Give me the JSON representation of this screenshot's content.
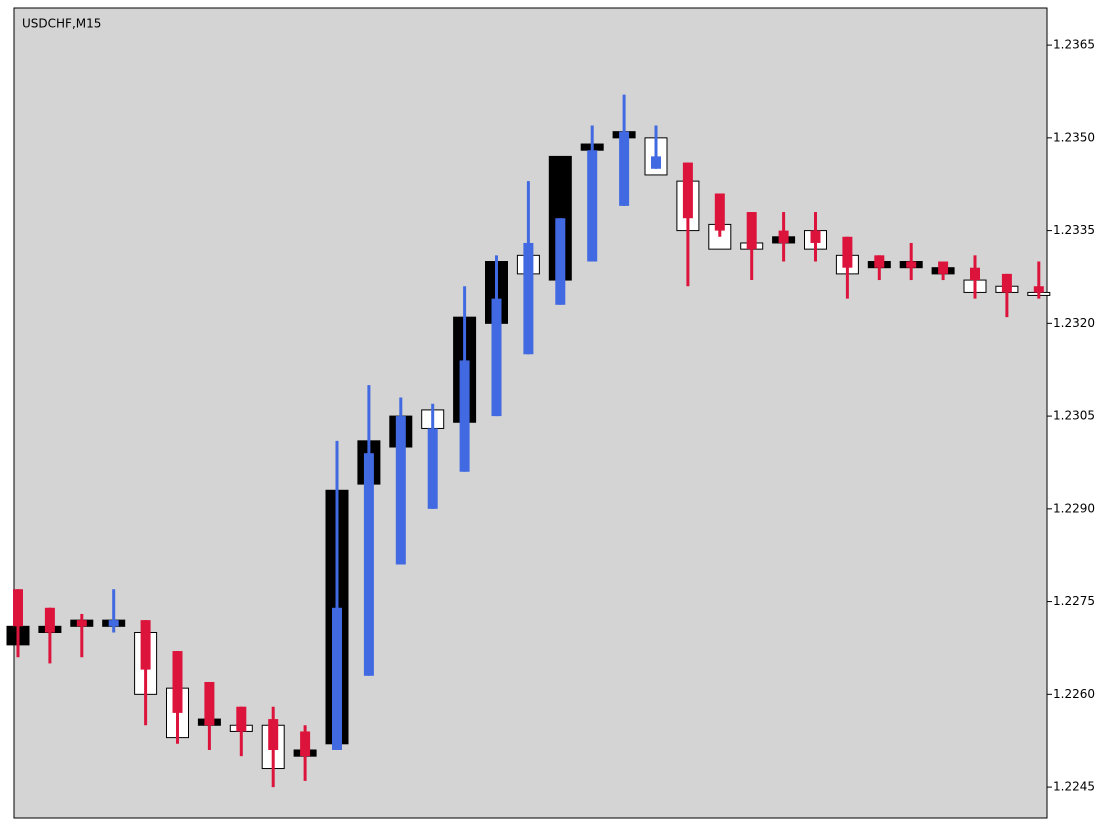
{
  "chart_data": {
    "type": "candlestick",
    "title": "USDCHF,M15",
    "ylim": [
      1.224,
      1.2371
    ],
    "yticks": [
      1.2365,
      {
        "value": 1.235,
        "label": "1.2350"
      },
      1.2335,
      {
        "value": 1.232,
        "label": "1.2320"
      },
      1.2305,
      {
        "value": 1.229,
        "label": "1.2290"
      },
      1.2275,
      {
        "value": 1.226,
        "label": "1.2260"
      },
      1.2245
    ],
    "series": [
      {
        "up_color": "#ffffff",
        "down_color": "#000000",
        "open": [
          1.2271,
          1.2271,
          1.2272,
          1.2272,
          1.226,
          1.2253,
          1.2256,
          1.2254,
          1.2248,
          1.2251,
          1.2293,
          1.2301,
          1.2305,
          1.2303,
          1.2321,
          1.233,
          1.2328,
          1.2347,
          1.2349,
          1.2351,
          1.2344,
          1.2335,
          1.2332,
          1.2332,
          1.2334,
          1.2332,
          1.2328,
          1.233,
          1.233,
          1.2329,
          1.2325,
          1.2325,
          1.2325
        ],
        "close": [
          1.2268,
          1.227,
          1.2271,
          1.2271,
          1.227,
          1.2261,
          1.2255,
          1.2255,
          1.2255,
          1.225,
          1.2252,
          1.2294,
          1.23,
          1.2306,
          1.2304,
          1.232,
          1.2331,
          1.2327,
          1.2348,
          1.235,
          1.235,
          1.2343,
          1.2336,
          1.2333,
          1.2333,
          1.2335,
          1.2331,
          1.2329,
          1.2329,
          1.2328,
          1.2327,
          1.2326,
          1.2325
        ]
      },
      {
        "up_color": "#4169e1",
        "down_color": "#dc143c",
        "open": [
          1.2277,
          1.2274,
          1.2272,
          1.2271,
          1.2272,
          1.2267,
          1.2262,
          1.2258,
          1.2256,
          1.2254,
          1.2251,
          1.2263,
          1.2281,
          1.229,
          1.2296,
          1.2305,
          1.2315,
          1.2323,
          1.233,
          1.2339,
          1.2345,
          1.2346,
          1.2341,
          1.2338,
          1.2335,
          1.2335,
          1.2334,
          1.2331,
          1.233,
          1.233,
          1.2329,
          1.2328,
          1.2326
        ],
        "high": [
          1.2277,
          1.2274,
          1.2273,
          1.2277,
          1.2272,
          1.2267,
          1.2262,
          1.2258,
          1.2258,
          1.2255,
          1.2301,
          1.231,
          1.2308,
          1.2307,
          1.2326,
          1.2331,
          1.2343,
          1.2337,
          1.2352,
          1.2357,
          1.2352,
          1.2346,
          1.2341,
          1.2338,
          1.2338,
          1.2338,
          1.2334,
          1.2331,
          1.2333,
          1.233,
          1.2331,
          1.2328,
          1.233
        ],
        "low": [
          1.2266,
          1.2265,
          1.2266,
          1.227,
          1.2255,
          1.2252,
          1.2251,
          1.225,
          1.2245,
          1.2246,
          1.2251,
          1.2263,
          1.2281,
          1.229,
          1.2296,
          1.2305,
          1.2315,
          1.2323,
          1.233,
          1.2339,
          1.2345,
          1.2326,
          1.2334,
          1.2327,
          1.233,
          1.233,
          1.2324,
          1.2327,
          1.2327,
          1.2327,
          1.2324,
          1.2321,
          1.2324
        ],
        "close": [
          1.2271,
          1.227,
          1.2271,
          1.2272,
          1.2264,
          1.2257,
          1.2255,
          1.2254,
          1.2251,
          1.225,
          1.2274,
          1.2299,
          1.2305,
          1.2303,
          1.2314,
          1.2324,
          1.2333,
          1.2337,
          1.2348,
          1.2351,
          1.2347,
          1.2337,
          1.2335,
          1.2332,
          1.2333,
          1.2333,
          1.2329,
          1.2329,
          1.2329,
          1.2328,
          1.2327,
          1.2325,
          1.2325
        ]
      }
    ]
  }
}
